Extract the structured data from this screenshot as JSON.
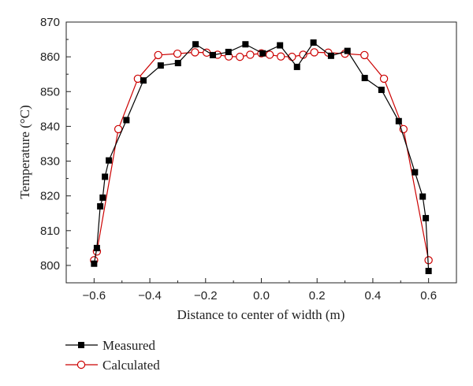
{
  "chart_data": {
    "type": "line",
    "title": "",
    "xlabel": "Distance to center of width (m)",
    "ylabel": "Temperature (°C)",
    "xlim": [
      -0.7,
      0.7
    ],
    "ylim": [
      795,
      870
    ],
    "x_ticks": [
      -0.6,
      -0.4,
      -0.2,
      0.0,
      0.2,
      0.4,
      0.6
    ],
    "x_tick_labels": [
      "−0.6",
      "−0.4",
      "−0.2",
      "0.0",
      "0.2",
      "0.4",
      "0.6"
    ],
    "y_ticks": [
      800,
      810,
      820,
      830,
      840,
      850,
      860,
      870
    ],
    "y_tick_labels": [
      "800",
      "810",
      "820",
      "830",
      "840",
      "850",
      "860",
      "870"
    ],
    "grid": false,
    "legend_position": "bottom-left, below plot",
    "series": [
      {
        "name": "Measured",
        "color": "#000000",
        "marker": "filled-square",
        "x": [
          -0.6,
          -0.59,
          -0.578,
          -0.569,
          -0.561,
          -0.547,
          -0.484,
          -0.423,
          -0.361,
          -0.299,
          -0.236,
          -0.174,
          -0.118,
          -0.057,
          0.005,
          0.067,
          0.128,
          0.187,
          0.25,
          0.309,
          0.371,
          0.431,
          0.493,
          0.551,
          0.579,
          0.59,
          0.6
        ],
        "y": [
          800.5,
          805,
          817,
          819.5,
          825.5,
          830.2,
          841.8,
          853.2,
          857.5,
          858.2,
          863.6,
          860.5,
          861.4,
          863.6,
          861.0,
          863.3,
          857.1,
          864.1,
          860.3,
          861.7,
          853.9,
          850.5,
          841.5,
          826.8,
          819.8,
          813.6,
          798.4
        ]
      },
      {
        "name": "Calculated",
        "color": "#cc0000",
        "marker": "open-circle",
        "x": [
          -0.6,
          -0.59,
          -0.513,
          -0.443,
          -0.37,
          -0.301,
          -0.238,
          -0.196,
          -0.157,
          -0.117,
          -0.077,
          -0.04,
          0.0,
          0.03,
          0.07,
          0.11,
          0.15,
          0.19,
          0.24,
          0.3,
          0.37,
          0.44,
          0.51,
          0.6
        ],
        "y": [
          801.5,
          804,
          839.2,
          853.7,
          860.5,
          860.9,
          861.3,
          861.2,
          860.6,
          860.1,
          860.0,
          860.6,
          861.0,
          860.6,
          860.1,
          860.0,
          860.6,
          861.3,
          861.2,
          860.9,
          860.5,
          853.7,
          839.2,
          801.5
        ]
      }
    ]
  }
}
